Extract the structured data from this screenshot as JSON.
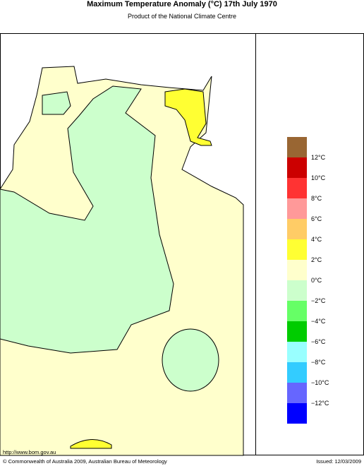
{
  "header": {
    "title": "Maximum Temperature Anomaly (°C)  17th July 1970",
    "subtitle": "Product of the National Climate Centre"
  },
  "legend": {
    "labels": [
      "12°C",
      "10°C",
      "8°C",
      "6°C",
      "4°C",
      "2°C",
      "0°C",
      "−2°C",
      "−4°C",
      "−6°C",
      "−8°C",
      "−10°C",
      "−12°C"
    ],
    "colors": [
      "#996633",
      "#cc0000",
      "#ff3333",
      "#ff9999",
      "#ffcc66",
      "#ffff33",
      "#ffffcc",
      "#ccffcc",
      "#66ff66",
      "#00cc00",
      "#99ffff",
      "#33ccff",
      "#6666ff",
      "#0000ff"
    ]
  },
  "footer": {
    "url": "http://www.bom.gov.au",
    "copyright": "© Commonwealth of Australia 2009, Australian Bureau of Meteorology",
    "issued": "Issued: 12/03/2009"
  }
}
